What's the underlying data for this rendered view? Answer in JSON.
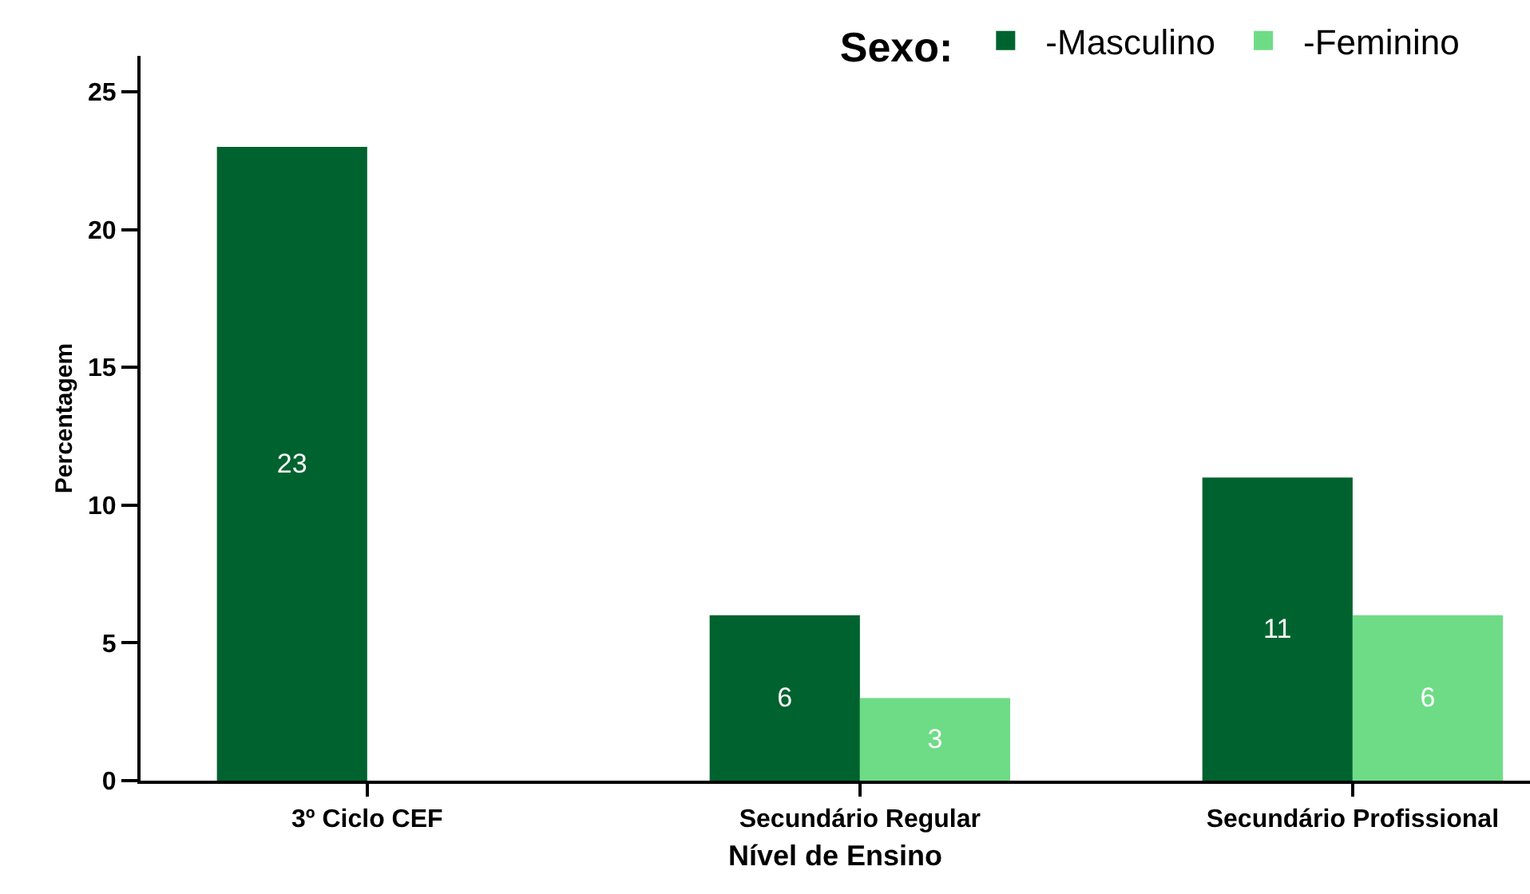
{
  "chart_data": {
    "type": "bar",
    "xlabel": "Nível de Ensino",
    "ylabel": "Percentagem",
    "legend_title": "Sexo:",
    "categories": [
      "3º Ciclo CEF",
      "Secundário Regular",
      "Secundário Profissional"
    ],
    "series": [
      {
        "name": "-Masculino",
        "color": "#00632f",
        "values": [
          23,
          6,
          11
        ]
      },
      {
        "name": "-Feminino",
        "color": "#6edc86",
        "values": [
          null,
          3,
          6
        ]
      }
    ],
    "ylim": [
      0,
      26.3
    ],
    "yticks": [
      0,
      5,
      10,
      15,
      20,
      25
    ],
    "data_labels": true,
    "legend": "top right"
  }
}
